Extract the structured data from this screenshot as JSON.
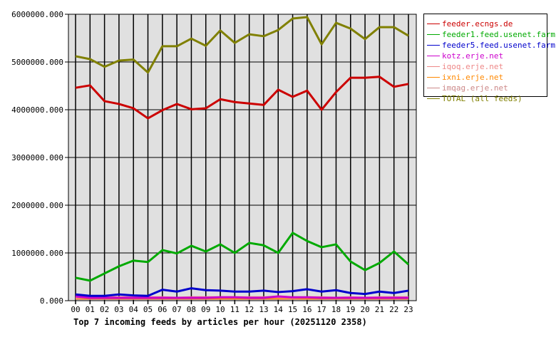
{
  "chart_data": {
    "type": "line",
    "title": "Top 7 incoming feeds by articles per hour (20251120 2358)",
    "xlabel": "",
    "ylabel": "",
    "ylim": [
      0,
      6000000
    ],
    "y_ticks": [
      "0.000",
      "1000000.000",
      "2000000.000",
      "3000000.000",
      "4000000.000",
      "5000000.000",
      "6000000.000"
    ],
    "grid": true,
    "legend_position": "right",
    "categories": [
      "00",
      "01",
      "02",
      "03",
      "04",
      "05",
      "06",
      "07",
      "08",
      "09",
      "10",
      "11",
      "12",
      "13",
      "14",
      "15",
      "16",
      "17",
      "18",
      "19",
      "20",
      "21",
      "22",
      "23"
    ],
    "series": [
      {
        "name": "feeder.ecngs.de",
        "color": "#cc0000",
        "values": [
          4460000,
          4510000,
          4180000,
          4120000,
          4030000,
          3820000,
          3990000,
          4120000,
          4010000,
          4030000,
          4220000,
          4160000,
          4130000,
          4100000,
          4420000,
          4270000,
          4400000,
          4000000,
          4370000,
          4670000,
          4670000,
          4690000,
          4480000,
          4540000
        ]
      },
      {
        "name": "feeder1.feed.usenet.farm",
        "color": "#00aa00",
        "values": [
          480000,
          420000,
          570000,
          720000,
          840000,
          810000,
          1060000,
          990000,
          1150000,
          1030000,
          1180000,
          1000000,
          1210000,
          1160000,
          1000000,
          1420000,
          1250000,
          1120000,
          1180000,
          820000,
          640000,
          790000,
          1030000,
          760000
        ]
      },
      {
        "name": "feeder5.feed.usenet.farm",
        "color": "#0000cc",
        "values": [
          130000,
          100000,
          100000,
          130000,
          110000,
          100000,
          230000,
          190000,
          260000,
          220000,
          210000,
          190000,
          190000,
          210000,
          180000,
          200000,
          240000,
          190000,
          220000,
          160000,
          140000,
          190000,
          160000,
          210000
        ]
      },
      {
        "name": "kotz.erje.net",
        "color": "#cc00cc",
        "values": [
          90000,
          60000,
          60000,
          60000,
          60000,
          60000,
          60000,
          60000,
          60000,
          60000,
          70000,
          70000,
          60000,
          60000,
          90000,
          70000,
          70000,
          60000,
          60000,
          60000,
          60000,
          60000,
          60000,
          60000
        ]
      },
      {
        "name": "iqoq.erje.net",
        "color": "#ee8888",
        "values": [
          60000,
          70000,
          70000,
          70000,
          70000,
          70000,
          70000,
          60000,
          70000,
          70000,
          70000,
          70000,
          70000,
          70000,
          70000,
          60000,
          70000,
          70000,
          60000,
          70000,
          60000,
          70000,
          70000,
          70000
        ]
      },
      {
        "name": "ixni.erje.net",
        "color": "#ff8800",
        "values": [
          50000,
          50000,
          50000,
          50000,
          50000,
          50000,
          50000,
          50000,
          50000,
          50000,
          50000,
          50000,
          50000,
          50000,
          50000,
          50000,
          50000,
          50000,
          50000,
          50000,
          50000,
          50000,
          50000,
          50000
        ]
      },
      {
        "name": "imqag.erje.net",
        "color": "#cc8888",
        "values": [
          40000,
          40000,
          40000,
          40000,
          40000,
          40000,
          40000,
          40000,
          40000,
          40000,
          40000,
          40000,
          40000,
          40000,
          40000,
          40000,
          40000,
          40000,
          40000,
          40000,
          40000,
          40000,
          40000,
          40000
        ]
      },
      {
        "name": "TOTAL (all feeds)",
        "color": "#808000",
        "values": [
          5120000,
          5060000,
          4900000,
          5030000,
          5050000,
          4780000,
          5330000,
          5330000,
          5490000,
          5340000,
          5660000,
          5400000,
          5580000,
          5540000,
          5670000,
          5910000,
          5940000,
          5370000,
          5820000,
          5700000,
          5480000,
          5730000,
          5730000,
          5550000
        ]
      }
    ]
  },
  "legend": {
    "items": [
      {
        "label": "feeder.ecngs.de",
        "color": "#cc0000"
      },
      {
        "label": "feeder1.feed.usenet.farm",
        "color": "#00aa00"
      },
      {
        "label": "feeder5.feed.usenet.farm",
        "color": "#0000cc"
      },
      {
        "label": "kotz.erje.net",
        "color": "#cc00cc"
      },
      {
        "label": "iqoq.erje.net",
        "color": "#ee8888"
      },
      {
        "label": "ixni.erje.net",
        "color": "#ff8800"
      },
      {
        "label": "imqag.erje.net",
        "color": "#cc8888"
      },
      {
        "label": "TOTAL (all feeds)",
        "color": "#808000"
      }
    ]
  },
  "title": "Top 7 incoming feeds by articles per hour (20251120 2358)"
}
